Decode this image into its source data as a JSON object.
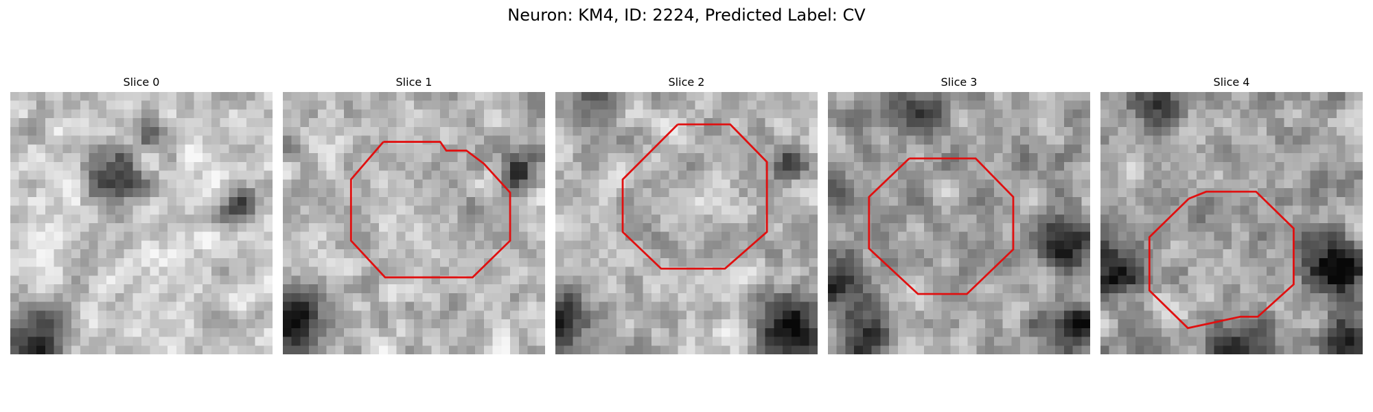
{
  "figure": {
    "title": "Neuron: KM4, ID: 2224, Predicted Label: CV"
  },
  "colors": {
    "background": "#ffffff",
    "contour": "#e01010",
    "image_colormap": "grayscale"
  },
  "panels": [
    {
      "title": "Slice 0",
      "contour": "none"
    },
    {
      "title": "Slice 1",
      "contour": "red-octagon"
    },
    {
      "title": "Slice 2",
      "contour": "red-octagon"
    },
    {
      "title": "Slice 3",
      "contour": "red-octagon"
    },
    {
      "title": "Slice 4",
      "contour": "red-octagon"
    }
  ]
}
